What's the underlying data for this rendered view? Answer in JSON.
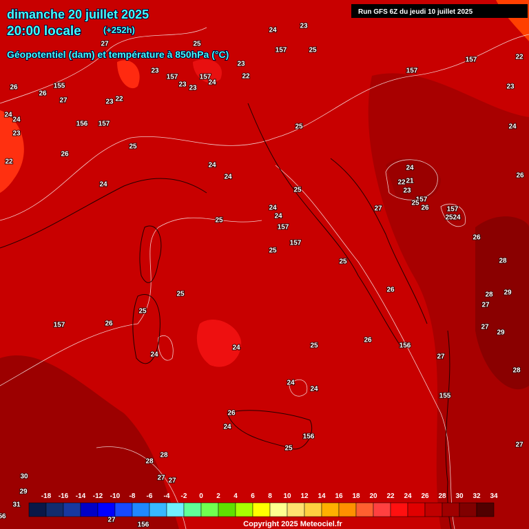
{
  "header": {
    "date": "dimanche 20 juillet 2025",
    "time": "20:00 locale",
    "lead": "(+252h)",
    "subtitle": "Géopotentiel (dam) et température à 850hPa (°C)",
    "run": "Run GFS 6Z du jeudi 10 juillet 2025"
  },
  "footer": "Copyright 2025 Meteociel.fr",
  "color_scale": {
    "ticks": [
      -18,
      -16,
      -14,
      -12,
      -10,
      -8,
      -6,
      -4,
      -2,
      0,
      2,
      4,
      6,
      8,
      10,
      12,
      14,
      16,
      18,
      20,
      22,
      24,
      26,
      28,
      30,
      32,
      34
    ],
    "colors": [
      "#0a1848",
      "#122c6e",
      "#1838a0",
      "#0000c8",
      "#0000ff",
      "#1848ff",
      "#2088ff",
      "#38b8ff",
      "#70f0ff",
      "#60ff98",
      "#70ff50",
      "#60e000",
      "#a8ff00",
      "#ffff00",
      "#ffff90",
      "#ffe070",
      "#ffd040",
      "#ffb000",
      "#ff9000",
      "#ff6030",
      "#ff4040",
      "#ff1010",
      "#e00000",
      "#c00000",
      "#a00000",
      "#800000",
      "#500000"
    ]
  },
  "map_labels": [
    "27",
    "25",
    "24",
    "23",
    "157",
    "25",
    "23",
    "157",
    "23",
    "22",
    "157",
    "24",
    "23",
    "23",
    "157",
    "157",
    "22",
    "23",
    "26",
    "155",
    "26",
    "27",
    "23",
    "22",
    "24",
    "24",
    "156",
    "157",
    "23",
    "25",
    "24",
    "25",
    "26",
    "22",
    "24",
    "24",
    "24",
    "25",
    "26",
    "22",
    "21",
    "23",
    "24",
    "157",
    "25",
    "26",
    "27",
    "157",
    "25",
    "24",
    "24",
    "24",
    "157",
    "25",
    "157",
    "25",
    "26",
    "28",
    "25",
    "25",
    "26",
    "28",
    "29",
    "27",
    "25",
    "157",
    "26",
    "27",
    "29",
    "156",
    "25",
    "26",
    "24",
    "24",
    "27",
    "28",
    "24",
    "24",
    "155",
    "24",
    "156",
    "26",
    "25",
    "28",
    "28",
    "27",
    "27",
    "27",
    "30",
    "29",
    "31",
    "56",
    "27",
    "156"
  ]
}
